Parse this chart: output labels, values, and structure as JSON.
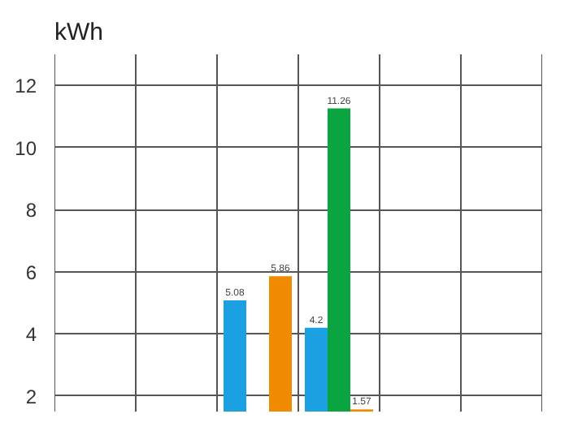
{
  "chart_data": {
    "type": "bar",
    "ylabel": "kWh",
    "categories": [
      null,
      null,
      null,
      null,
      null,
      null
    ],
    "series": [
      {
        "color": "#1ba1e2",
        "values": [
          null,
          null,
          5.08,
          4.2,
          null,
          null
        ]
      },
      {
        "color": "#0aa540",
        "values": [
          null,
          null,
          null,
          11.26,
          null,
          null
        ]
      },
      {
        "color": "#f08a00",
        "values": [
          null,
          null,
          5.86,
          1.57,
          null,
          null
        ]
      }
    ],
    "ylim": [
      1.5,
      13
    ],
    "yticks": [
      2,
      4,
      6,
      8,
      10,
      12
    ],
    "grid": true,
    "data_labels": true,
    "tick_labels": "y"
  }
}
